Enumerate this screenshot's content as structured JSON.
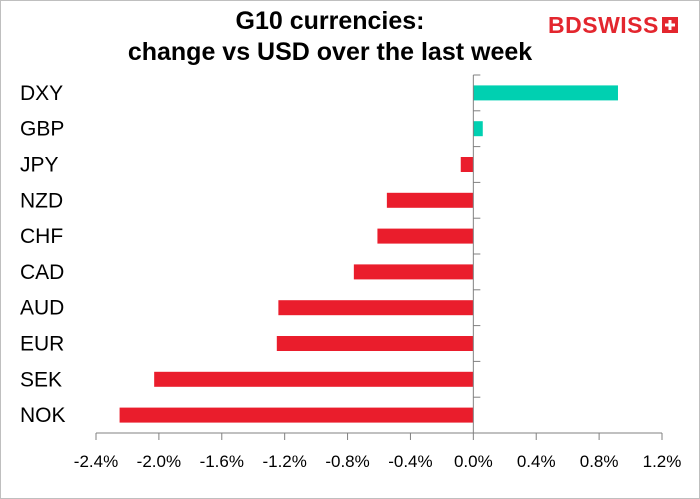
{
  "chart_data": {
    "type": "bar",
    "orientation": "horizontal",
    "title_lines": [
      "G10 currencies:",
      "change vs USD over the last week"
    ],
    "categories": [
      "DXY",
      "GBP",
      "JPY",
      "NZD",
      "CHF",
      "CAD",
      "AUD",
      "EUR",
      "SEK",
      "NOK"
    ],
    "values": [
      0.92,
      0.06,
      -0.08,
      -0.55,
      -0.61,
      -0.76,
      -1.24,
      -1.25,
      -2.03,
      -2.25
    ],
    "xlim": [
      -2.4,
      1.2
    ],
    "xticks": [
      -2.4,
      -2.0,
      -1.6,
      -1.2,
      -0.8,
      -0.4,
      0.0,
      0.4,
      0.8,
      1.2
    ],
    "xtick_labels": [
      "-2.4%",
      "-2.0%",
      "-1.6%",
      "-1.2%",
      "-0.8%",
      "-0.4%",
      "0.0%",
      "0.4%",
      "0.8%",
      "1.2%"
    ],
    "xlabel": "",
    "ylabel": "",
    "grid": false,
    "colors": {
      "positive": "#00d0b1",
      "negative": "#ea1d2c",
      "axis": "#808080"
    }
  },
  "logo": {
    "part1": "BD",
    "part2": "SWISS",
    "color": "#e3262e"
  }
}
